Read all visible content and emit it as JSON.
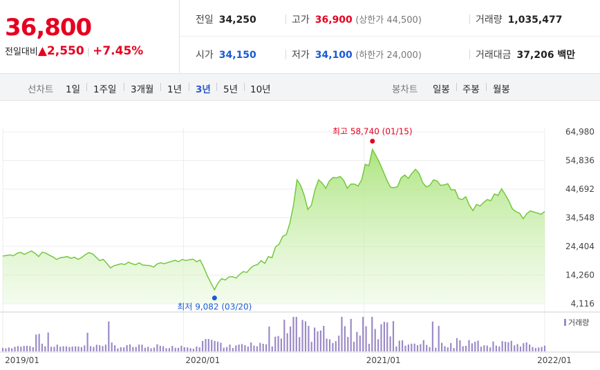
{
  "quote": {
    "price": "36,800",
    "change_label": "전일대비",
    "change_arrow": "▲",
    "change_value": "2,550",
    "change_pct": "+7.45%",
    "prev_close_label": "전일",
    "prev_close": "34,250",
    "high_label": "고가",
    "high": "36,900",
    "upper_limit": "(상한가 44,500)",
    "volume_label": "거래량",
    "volume": "1,035,477",
    "open_label": "시가",
    "open": "34,150",
    "low_label": "저가",
    "low": "34,100",
    "lower_limit": "(하한가 24,000)",
    "amount_label": "거래대금",
    "amount": "37,206 백만"
  },
  "tabs": {
    "line_title": "선차트",
    "line": [
      "1일",
      "1주일",
      "3개월",
      "1년",
      "3년",
      "5년",
      "10년"
    ],
    "line_active": "3년",
    "candle_title": "봉차트",
    "candle": [
      "일봉",
      "주봉",
      "월봉"
    ]
  },
  "colors": {
    "up": "#e6001f",
    "down": "#1a5ad4",
    "line": "#72c83b",
    "fill": "#b5ea86",
    "volume": "#9b8ac7"
  },
  "chart_data": {
    "type": "area",
    "y_ticks": [
      "64,980",
      "54,836",
      "44,692",
      "34,548",
      "24,404",
      "14,260",
      "4,116"
    ],
    "ylim": [
      4116,
      64980
    ],
    "x_ticks": [
      "2019/01",
      "2020/01",
      "2021/01",
      "2022/01"
    ],
    "x_range": [
      "2019-01",
      "2022-01"
    ],
    "grid": true,
    "high_annotation": "최고 58,740 (01/15)",
    "low_annotation": "최저 9,082 (03/20)",
    "high_point": {
      "date": "2021/01/15",
      "value": 58740
    },
    "low_point": {
      "date": "2020/03/20",
      "value": 9082
    },
    "volume_legend": "거래량",
    "price_series": [
      21000,
      21200,
      21400,
      21100,
      22000,
      22300,
      21600,
      22200,
      22800,
      22000,
      20800,
      22400,
      22000,
      21300,
      20700,
      19800,
      20400,
      20600,
      20800,
      20200,
      20600,
      19800,
      20500,
      21500,
      22200,
      21800,
      20600,
      19400,
      19800,
      18400,
      16800,
      17600,
      17900,
      18300,
      18000,
      18800,
      18300,
      17900,
      18600,
      17800,
      17700,
      17600,
      17100,
      18200,
      18600,
      18300,
      18700,
      19100,
      19500,
      19000,
      19800,
      19400,
      19700,
      19900,
      19000,
      19600,
      17000,
      14000,
      11500,
      9082,
      11500,
      13000,
      12500,
      13600,
      13700,
      13200,
      14500,
      15500,
      15200,
      16700,
      17600,
      18000,
      19400,
      18400,
      20800,
      20400,
      24200,
      25200,
      28000,
      28600,
      32700,
      39000,
      48000,
      46000,
      42500,
      37500,
      39000,
      44500,
      48000,
      46800,
      45000,
      47600,
      48800,
      48700,
      49200,
      47800,
      45000,
      46500,
      46500,
      45800,
      48000,
      53500,
      53000,
      58740,
      56500,
      54000,
      51000,
      48000,
      45400,
      45200,
      45600,
      48700,
      49700,
      48500,
      50300,
      51700,
      50300,
      47000,
      45500,
      46000,
      48000,
      47600,
      46000,
      46200,
      46600,
      44400,
      44500,
      41400,
      41000,
      42000,
      39000,
      37100,
      39300,
      38700,
      40000,
      41000,
      40600,
      43000,
      42500,
      44800,
      42800,
      40500,
      37700,
      36700,
      36200,
      34200,
      36000,
      37000,
      36600,
      36200,
      35800,
      36800
    ]
  }
}
